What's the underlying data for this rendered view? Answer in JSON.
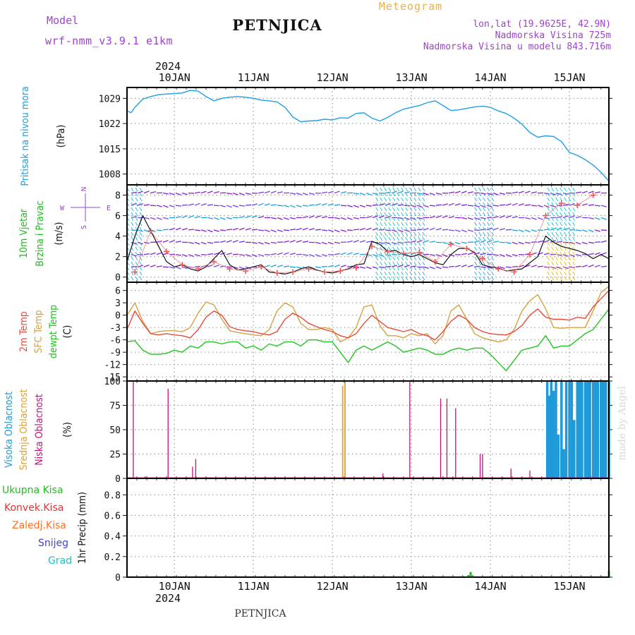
{
  "header": {
    "meteogram": "Meteogram",
    "model_label": "Model",
    "model_name": "wrf-nmm_v3.9.1 e1km",
    "station": "PETNJICA",
    "lonlat": "lon,lat (19.9625E, 42.9N)",
    "altitude": "Nadmorska Visina 725m",
    "model_altitude": "Nadmorska Visina u modelu 843.716m",
    "year": "2024",
    "footer_station": "PETNJICA",
    "credit": "made by Angel"
  },
  "colors": {
    "pressure": "#1ea0e6",
    "temp2m": "#e84a3a",
    "sfc": "#d8a040",
    "dewpt": "#22c422",
    "cloud_high": "#1e9ad8",
    "cloud_mid": "#e0a030",
    "cloud_low": "#c8107a",
    "precip_total": "#22bb22",
    "precip_conv": "#e83030",
    "precip_frz": "#ff7020",
    "precip_snow": "#4040d8",
    "precip_grad": "#20c0c0",
    "header_purple": "#a040d0",
    "header_orange": "#e8b050"
  },
  "axes": {
    "days": [
      "10JAN",
      "11JAN",
      "12JAN",
      "13JAN",
      "14JAN",
      "15JAN"
    ],
    "x_range": [
      9.4,
      15.5
    ]
  },
  "chart_data": [
    {
      "type": "line",
      "labels": [
        "Pritisak na nivou mora",
        "(hPa)"
      ],
      "yticks": [
        1008,
        1015,
        1022,
        1029
      ],
      "ylim": [
        1005,
        1032
      ],
      "x": [
        9.4,
        9.45,
        9.5,
        9.6,
        9.7,
        9.8,
        9.9,
        10.0,
        10.1,
        10.2,
        10.3,
        10.4,
        10.5,
        10.6,
        10.7,
        10.8,
        10.9,
        11.0,
        11.1,
        11.2,
        11.3,
        11.4,
        11.5,
        11.6,
        11.7,
        11.8,
        11.9,
        12.0,
        12.1,
        12.2,
        12.3,
        12.4,
        12.5,
        12.6,
        12.7,
        12.8,
        12.9,
        13.0,
        13.1,
        13.2,
        13.3,
        13.4,
        13.5,
        13.6,
        13.7,
        13.8,
        13.9,
        14.0,
        14.1,
        14.2,
        14.3,
        14.4,
        14.5,
        14.6,
        14.7,
        14.8,
        14.9,
        15.0,
        15.1,
        15.2,
        15.3,
        15.4,
        15.5
      ],
      "y": [
        1025.5,
        1025.0,
        1026.5,
        1028.8,
        1029.5,
        1030.0,
        1030.2,
        1030.3,
        1030.5,
        1031.2,
        1031.0,
        1029.5,
        1028.3,
        1029.0,
        1029.3,
        1029.5,
        1029.3,
        1029.0,
        1028.5,
        1028.3,
        1028.0,
        1026.5,
        1023.8,
        1022.5,
        1022.7,
        1022.8,
        1023.2,
        1023.0,
        1023.6,
        1023.5,
        1024.8,
        1025.0,
        1023.5,
        1022.7,
        1023.7,
        1025.0,
        1026.0,
        1026.5,
        1027.0,
        1027.8,
        1028.3,
        1027.0,
        1025.6,
        1025.8,
        1026.2,
        1026.6,
        1026.8,
        1026.5,
        1025.5,
        1024.8,
        1023.5,
        1021.8,
        1019.5,
        1018.2,
        1018.6,
        1018.4,
        1017.0,
        1014.0,
        1013.2,
        1012.0,
        1010.5,
        1008.5,
        1006.0
      ]
    },
    {
      "type": "line",
      "labels": [
        "10m Vjetar",
        "Brzina i Pravac",
        "(m/s)"
      ],
      "compass": [
        "N",
        "E",
        "S",
        "W"
      ],
      "yticks": [
        0,
        2,
        4,
        6,
        8
      ],
      "ylim": [
        -0.5,
        9
      ],
      "series": [
        {
          "x": [
            9.4,
            9.5,
            9.6,
            9.7,
            9.8,
            9.9,
            10.0,
            10.1,
            10.2,
            10.3,
            10.4,
            10.5,
            10.6,
            10.7,
            10.8,
            10.9,
            11.0,
            11.1,
            11.2,
            11.3,
            11.4,
            11.5,
            11.6,
            11.7,
            11.8,
            11.9,
            12.0,
            12.1,
            12.2,
            12.3,
            12.4,
            12.5,
            12.6,
            12.7,
            12.8,
            12.9,
            13.0,
            13.1,
            13.2,
            13.3,
            13.4,
            13.5,
            13.6,
            13.7,
            13.8,
            13.9,
            14.0,
            14.1,
            14.2,
            14.3,
            14.4,
            14.5,
            14.6,
            14.7,
            14.8,
            14.9,
            15.0,
            15.1,
            15.2,
            15.3,
            15.4,
            15.5
          ],
          "y": [
            1.5,
            4.0,
            6.0,
            4.5,
            3.0,
            1.5,
            1.0,
            1.2,
            0.8,
            0.6,
            1.0,
            1.8,
            2.6,
            1.2,
            0.7,
            0.8,
            1.0,
            1.2,
            0.5,
            0.4,
            0.3,
            0.5,
            0.8,
            1.0,
            0.7,
            0.5,
            0.4,
            0.6,
            0.8,
            1.2,
            1.3,
            3.5,
            3.2,
            2.5,
            2.6,
            2.2,
            2.0,
            2.2,
            1.8,
            1.4,
            1.2,
            2.2,
            2.8,
            2.8,
            2.4,
            1.2,
            1.0,
            0.9,
            0.6,
            0.7,
            0.8,
            1.4,
            2.0,
            4.0,
            3.4,
            3.0,
            2.8,
            2.6,
            2.3,
            1.8,
            2.2,
            1.8
          ]
        },
        {
          "x": [
            9.5,
            9.7,
            9.9,
            10.1,
            10.3,
            10.5,
            10.7,
            10.9,
            11.1,
            11.3,
            11.5,
            11.7,
            11.9,
            12.1,
            12.3,
            12.5,
            12.7,
            12.9,
            13.1,
            13.3,
            13.5,
            13.7,
            13.9,
            14.1,
            14.3,
            14.5,
            14.7,
            14.9,
            15.1,
            15.3
          ],
          "y": [
            0.5,
            4.5,
            2.5,
            1.2,
            0.8,
            1.5,
            0.8,
            0.6,
            1.0,
            0.4,
            0.5,
            0.8,
            0.5,
            0.6,
            0.9,
            3.0,
            2.5,
            2.3,
            2.4,
            1.5,
            3.2,
            2.8,
            1.8,
            0.8,
            0.5,
            2.2,
            6.0,
            7.2,
            7.0,
            8.0
          ]
        }
      ]
    },
    {
      "type": "line",
      "labels": [
        "2m Temp",
        "SFC Temp",
        "dewpt Temp",
        "(C)"
      ],
      "yticks": [
        -15,
        -12,
        -9,
        -6,
        -3,
        0,
        3,
        6
      ],
      "ylim": [
        -16,
        8
      ],
      "series": [
        {
          "x": [
            9.4,
            9.5,
            9.6,
            9.7,
            9.8,
            9.9,
            10.0,
            10.1,
            10.2,
            10.3,
            10.4,
            10.5,
            10.6,
            10.7,
            10.8,
            10.9,
            11.0,
            11.1,
            11.2,
            11.3,
            11.4,
            11.5,
            11.6,
            11.7,
            11.8,
            11.9,
            12.0,
            12.1,
            12.2,
            12.3,
            12.4,
            12.5,
            12.6,
            12.7,
            12.8,
            12.9,
            13.0,
            13.1,
            13.2,
            13.3,
            13.4,
            13.5,
            13.6,
            13.7,
            13.8,
            13.9,
            14.0,
            14.1,
            14.2,
            14.3,
            14.4,
            14.5,
            14.6,
            14.7,
            14.8,
            14.9,
            15.0,
            15.1,
            15.2,
            15.3,
            15.4,
            15.5
          ],
          "y": [
            -3.5,
            1.0,
            -2.0,
            -4.5,
            -4.8,
            -4.5,
            -4.8,
            -5.0,
            -5.5,
            -3.5,
            -0.5,
            1.0,
            0.0,
            -2.8,
            -3.5,
            -3.8,
            -4.0,
            -4.5,
            -4.8,
            -4.0,
            -1.0,
            0.5,
            -0.5,
            -2.0,
            -2.8,
            -3.5,
            -4.0,
            -5.0,
            -5.5,
            -4.5,
            -2.0,
            0.0,
            -1.5,
            -3.0,
            -3.5,
            -4.0,
            -3.5,
            -4.5,
            -5.0,
            -6.0,
            -4.0,
            -1.5,
            0.0,
            -1.0,
            -3.0,
            -4.0,
            -4.5,
            -4.7,
            -4.8,
            -4.0,
            -2.5,
            0.0,
            1.5,
            -0.5,
            -1.0,
            -1.0,
            -1.2,
            -0.5,
            -0.8,
            2.0,
            4.0,
            6.0
          ]
        },
        {
          "x": [
            9.4,
            9.5,
            9.6,
            9.7,
            9.8,
            9.9,
            10.0,
            10.1,
            10.2,
            10.3,
            10.4,
            10.5,
            10.6,
            10.7,
            10.8,
            10.9,
            11.0,
            11.1,
            11.2,
            11.3,
            11.4,
            11.5,
            11.6,
            11.7,
            11.8,
            11.9,
            12.0,
            12.1,
            12.2,
            12.3,
            12.4,
            12.5,
            12.6,
            12.7,
            12.8,
            12.9,
            13.0,
            13.1,
            13.2,
            13.3,
            13.4,
            13.5,
            13.6,
            13.7,
            13.8,
            13.9,
            14.0,
            14.1,
            14.2,
            14.3,
            14.4,
            14.5,
            14.6,
            14.7,
            14.8,
            14.9,
            15.0,
            15.1,
            15.2,
            15.3,
            15.4,
            15.5
          ],
          "y": [
            0.0,
            3.0,
            -1.5,
            -4.5,
            -4.0,
            -3.8,
            -3.8,
            -4.0,
            -3.0,
            0.5,
            3.2,
            2.5,
            -1.0,
            -3.8,
            -4.2,
            -4.5,
            -4.8,
            -5.0,
            -3.5,
            1.0,
            3.0,
            2.0,
            -2.0,
            -3.5,
            -3.5,
            -3.0,
            -3.5,
            -6.5,
            -5.5,
            -3.0,
            2.0,
            2.5,
            -2.5,
            -5.0,
            -5.0,
            -5.5,
            -4.5,
            -5.0,
            -4.5,
            -7.0,
            -5.0,
            1.0,
            2.5,
            -1.0,
            -4.5,
            -5.5,
            -6.0,
            -6.5,
            -6.0,
            -3.5,
            1.0,
            3.5,
            5.0,
            1.5,
            -3.0,
            -3.2,
            -3.0,
            -3.0,
            -3.0,
            1.0,
            5.5,
            7.0
          ]
        },
        {
          "x": [
            9.4,
            9.5,
            9.6,
            9.7,
            9.8,
            9.9,
            10.0,
            10.1,
            10.2,
            10.3,
            10.4,
            10.5,
            10.6,
            10.7,
            10.8,
            10.9,
            11.0,
            11.1,
            11.2,
            11.3,
            11.4,
            11.5,
            11.6,
            11.7,
            11.8,
            11.9,
            12.0,
            12.1,
            12.2,
            12.3,
            12.4,
            12.5,
            12.6,
            12.7,
            12.8,
            12.9,
            13.0,
            13.1,
            13.2,
            13.3,
            13.4,
            13.5,
            13.6,
            13.7,
            13.8,
            13.9,
            14.0,
            14.1,
            14.2,
            14.3,
            14.4,
            14.5,
            14.6,
            14.7,
            14.8,
            14.9,
            15.0,
            15.1,
            15.2,
            15.3,
            15.4,
            15.5
          ],
          "y": [
            -6.5,
            -6.2,
            -8.5,
            -9.5,
            -9.5,
            -9.3,
            -8.5,
            -9.0,
            -7.5,
            -8.0,
            -6.5,
            -6.5,
            -7.0,
            -6.5,
            -6.5,
            -8.0,
            -7.5,
            -8.5,
            -7.0,
            -7.5,
            -6.5,
            -6.5,
            -7.5,
            -6.0,
            -6.0,
            -6.5,
            -6.5,
            -9.0,
            -11.5,
            -8.5,
            -7.5,
            -8.5,
            -7.5,
            -6.5,
            -7.5,
            -9.0,
            -8.5,
            -8.0,
            -8.5,
            -9.5,
            -9.5,
            -8.5,
            -8.0,
            -8.5,
            -8.0,
            -8.0,
            -9.5,
            -11.5,
            -13.5,
            -11.0,
            -8.5,
            -8.0,
            -7.5,
            -5.0,
            -8.0,
            -7.5,
            -7.5,
            -6.0,
            -4.5,
            -3.5,
            -1.0,
            1.5
          ]
        }
      ]
    },
    {
      "type": "bar",
      "labels": [
        "Visoka Oblacnost",
        "Srednja Oblacnost",
        "Niska Oblacnost",
        "(%)"
      ],
      "yticks": [
        0,
        25,
        50,
        75,
        100
      ],
      "ylim": [
        0,
        100
      ],
      "series": [
        {
          "x": [
            9.48,
            9.63,
            9.92,
            10.23,
            10.27,
            12.64,
            12.98,
            13.37,
            13.45,
            13.56,
            13.87,
            13.9,
            14.26,
            14.5,
            15.05
          ],
          "values": [
            100,
            2,
            92,
            12,
            20,
            5,
            100,
            82,
            82,
            72,
            25,
            25,
            10,
            8,
            5
          ]
        },
        {
          "x": [
            12.13,
            12.16
          ],
          "values": [
            95,
            100
          ]
        },
        {
          "x": [
            14.72,
            14.74,
            14.77,
            14.8,
            14.83,
            14.86,
            14.9,
            14.93,
            14.96,
            15.0,
            15.03,
            15.06,
            15.1,
            15.13,
            15.16,
            15.2,
            15.23,
            15.26,
            15.3,
            15.33,
            15.36,
            15.4,
            15.43,
            15.46,
            15.5
          ],
          "values": [
            100,
            85,
            100,
            90,
            100,
            45,
            100,
            30,
            100,
            100,
            100,
            60,
            100,
            100,
            100,
            100,
            100,
            100,
            100,
            100,
            100,
            100,
            100,
            100,
            100
          ]
        }
      ]
    },
    {
      "type": "bar",
      "labels": [
        "Ukupna Kisa",
        "Konvek.Kisa",
        "Zaledj.Kisa",
        "Snijeg",
        "Grad",
        "1hr Precip (mm)"
      ],
      "yticks": [
        0,
        0.2,
        0.4,
        0.6,
        0.8
      ],
      "ylim": [
        0,
        0.96
      ],
      "series": [
        {
          "x": [
            12.45,
            13.72,
            13.75,
            13.78,
            15.5
          ],
          "values": [
            0.01,
            0.02,
            0.05,
            0.01,
            0.06
          ]
        }
      ]
    }
  ]
}
